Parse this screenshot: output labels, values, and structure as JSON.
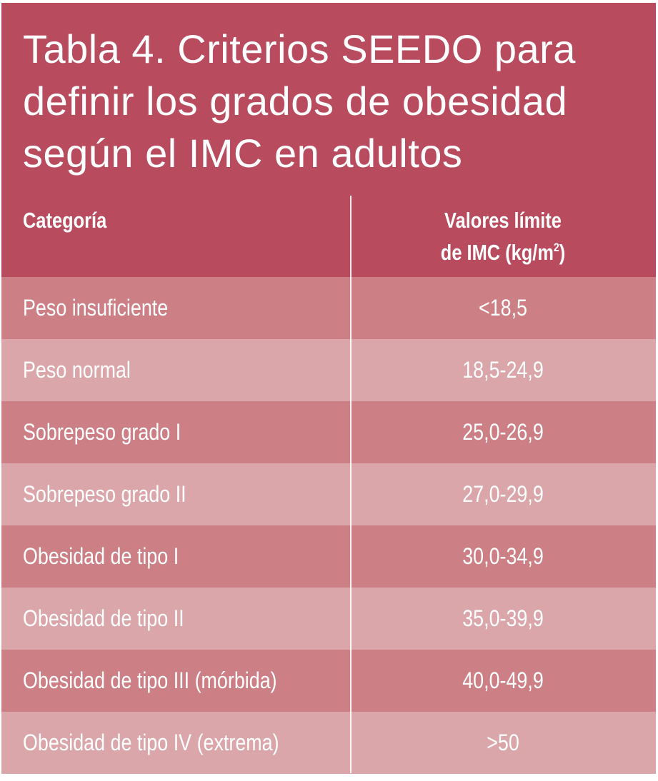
{
  "table": {
    "title": "Tabla 4. Criterios SEEDO para\ndefinir los grados de obesidad\nsegún el IMC en adultos",
    "header": {
      "category": "Categoría",
      "values_line1": "Valores límite",
      "values_line2": "de IMC (kg/m",
      "values_sup": "2",
      "values_close": ")"
    },
    "rows": [
      {
        "category": "Peso insuficiente",
        "value": "<18,5"
      },
      {
        "category": "Peso normal",
        "value": "18,5-24,9"
      },
      {
        "category": "Sobrepeso grado I",
        "value": "25,0-26,9"
      },
      {
        "category": "Sobrepeso grado II",
        "value": "27,0-29,9"
      },
      {
        "category": "Obesidad de tipo I",
        "value": "30,0-34,9"
      },
      {
        "category": "Obesidad de tipo II",
        "value": "35,0-39,9"
      },
      {
        "category": "Obesidad de tipo III (mórbida)",
        "value": "40,0-49,9"
      },
      {
        "category": "Obesidad de tipo IV (extrema)",
        "value": ">50"
      }
    ]
  },
  "colors": {
    "header_bg": "#b94b5e",
    "row_dark": "#cd7f86",
    "row_light": "#dba6aa",
    "text": "#ffffff"
  }
}
